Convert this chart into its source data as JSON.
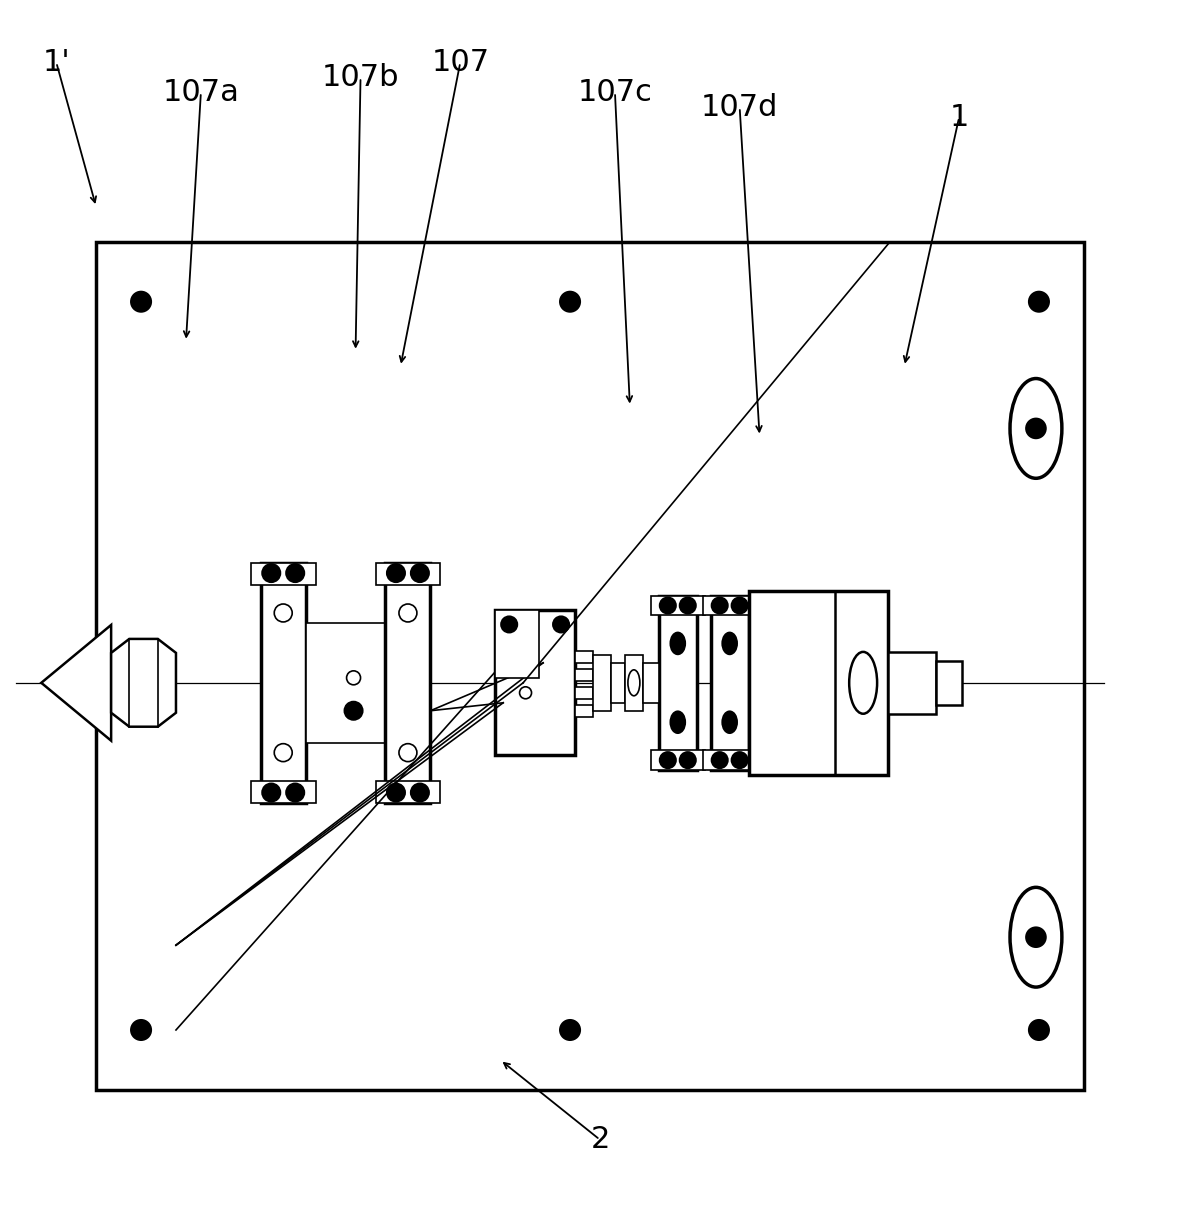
{
  "bg_color": "#ffffff",
  "line_color": "#000000",
  "fig_width": 11.8,
  "fig_height": 12.06,
  "labels": {
    "1prime": {
      "text": "1'"
    },
    "107a": {
      "text": "107a"
    },
    "107b": {
      "text": "107b"
    },
    "107": {
      "text": "107"
    },
    "107c": {
      "text": "107c"
    },
    "107d": {
      "text": "107d"
    },
    "1": {
      "text": "1"
    },
    "2": {
      "text": "2"
    }
  }
}
